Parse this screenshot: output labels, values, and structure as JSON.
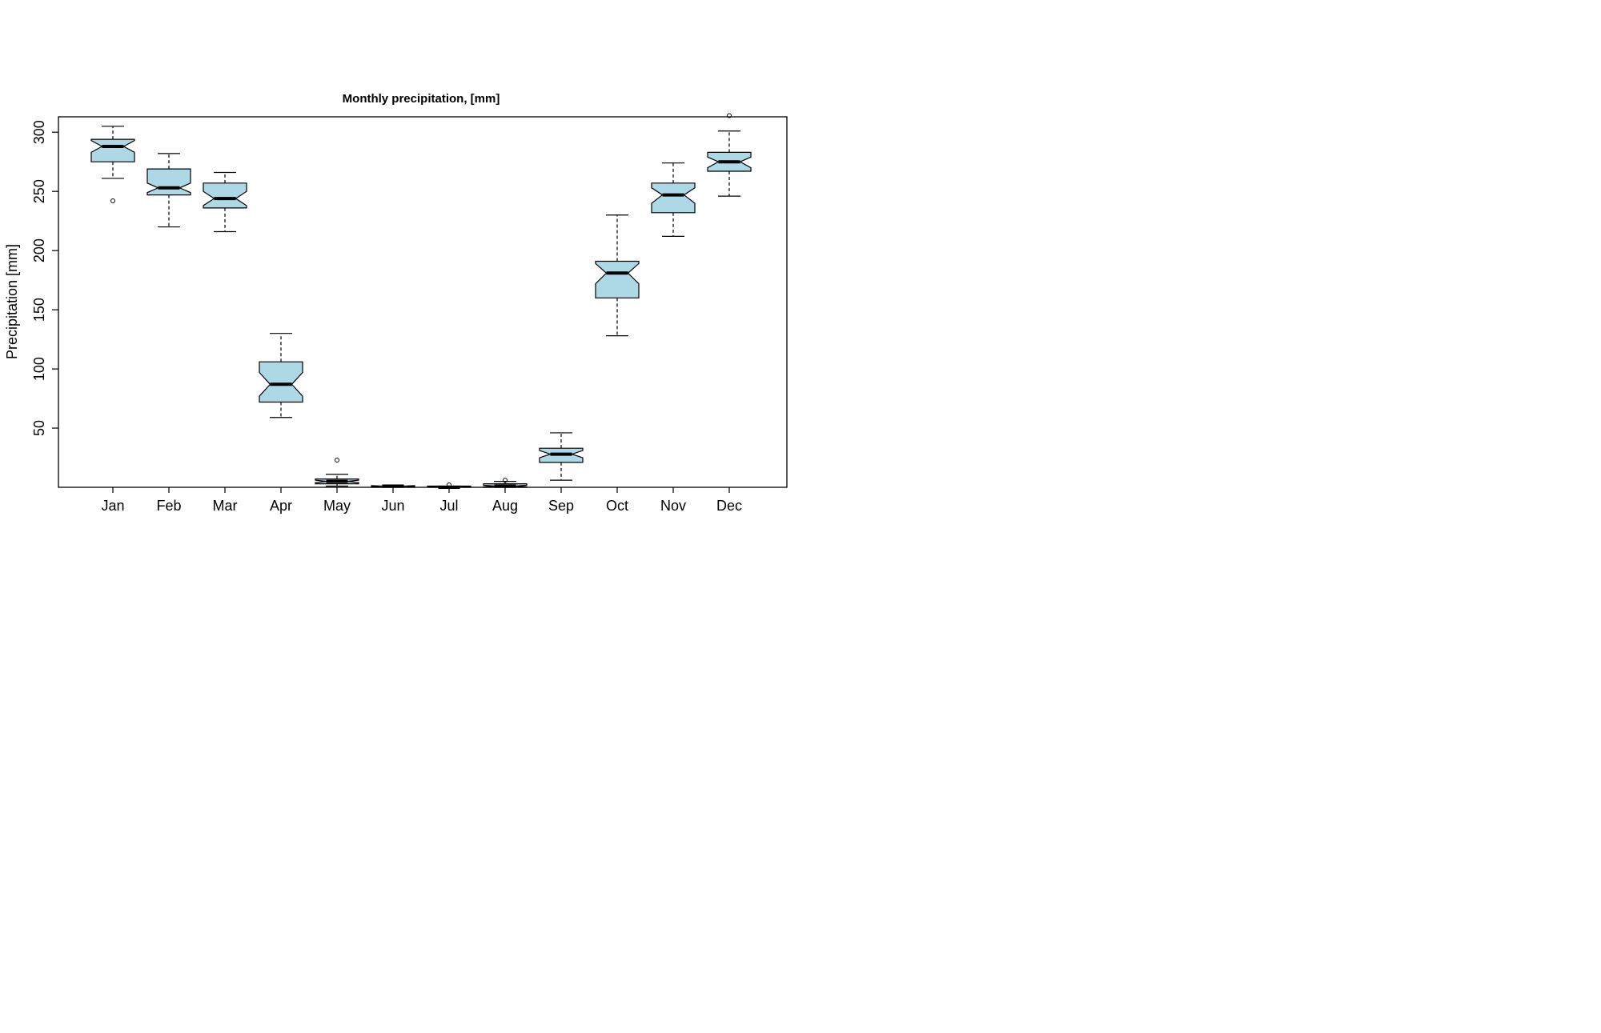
{
  "chart_data": {
    "type": "box",
    "title": "Monthly precipitation, [mm]",
    "xlabel": "",
    "ylabel": "Precipitation [mm]",
    "ylim": [
      0,
      313
    ],
    "yticks": [
      50,
      100,
      150,
      200,
      250,
      300
    ],
    "notched": true,
    "box_fill": "#add8e6",
    "grid": false,
    "legend": "none",
    "categories": [
      "Jan",
      "Feb",
      "Mar",
      "Apr",
      "May",
      "Jun",
      "Jul",
      "Aug",
      "Sep",
      "Oct",
      "Nov",
      "Dec"
    ],
    "boxes": [
      {
        "whisker_low": 261,
        "q1": 275,
        "median": 288,
        "q3": 294,
        "whisker_high": 305,
        "notch_low": 283,
        "notch_high": 293,
        "outliers": [
          242
        ]
      },
      {
        "whisker_low": 220,
        "q1": 247,
        "median": 253,
        "q3": 269,
        "whisker_high": 282,
        "notch_low": 249,
        "notch_high": 257,
        "outliers": []
      },
      {
        "whisker_low": 216,
        "q1": 236,
        "median": 244,
        "q3": 257,
        "whisker_high": 266,
        "notch_low": 238,
        "notch_high": 250,
        "outliers": []
      },
      {
        "whisker_low": 59,
        "q1": 72,
        "median": 87,
        "q3": 106,
        "whisker_high": 130,
        "notch_low": 77,
        "notch_high": 97,
        "outliers": []
      },
      {
        "whisker_low": 1,
        "q1": 3,
        "median": 5,
        "q3": 7,
        "whisker_high": 11,
        "notch_low": 4,
        "notch_high": 6,
        "outliers": [
          23
        ]
      },
      {
        "whisker_low": 0,
        "q1": 0,
        "median": 1,
        "q3": 1,
        "whisker_high": 1,
        "notch_low": 0.6,
        "notch_high": 1.4,
        "outliers": []
      },
      {
        "whisker_low": 0,
        "q1": 0,
        "median": 0,
        "q3": 1,
        "whisker_high": 1,
        "notch_low": 0,
        "notch_high": 0.8,
        "outliers": [
          2
        ]
      },
      {
        "whisker_low": 0,
        "q1": 0,
        "median": 1,
        "q3": 3,
        "whisker_high": 5,
        "notch_low": 0.5,
        "notch_high": 1.8,
        "outliers": [
          6
        ]
      },
      {
        "whisker_low": 6,
        "q1": 21,
        "median": 28,
        "q3": 33,
        "whisker_high": 46,
        "notch_low": 25,
        "notch_high": 31,
        "outliers": []
      },
      {
        "whisker_low": 128,
        "q1": 160,
        "median": 181,
        "q3": 191,
        "whisker_high": 230,
        "notch_low": 172,
        "notch_high": 189,
        "outliers": []
      },
      {
        "whisker_low": 212,
        "q1": 232,
        "median": 247,
        "q3": 257,
        "whisker_high": 274,
        "notch_low": 240,
        "notch_high": 253,
        "outliers": []
      },
      {
        "whisker_low": 246,
        "q1": 267,
        "median": 275,
        "q3": 283,
        "whisker_high": 301,
        "notch_low": 270,
        "notch_high": 279,
        "outliers": [
          314
        ]
      }
    ]
  }
}
